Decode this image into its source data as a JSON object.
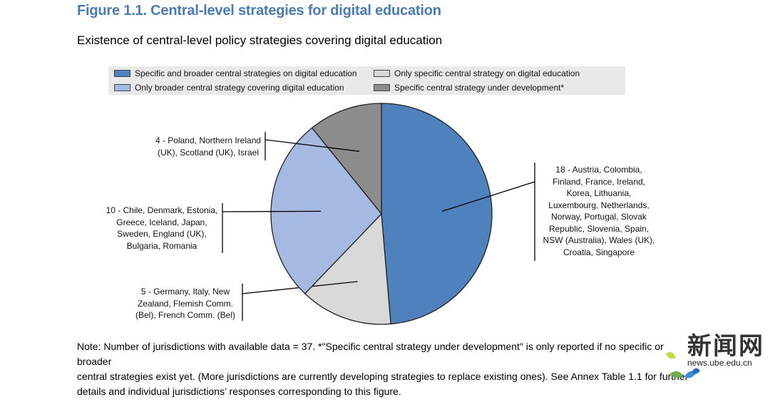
{
  "figure": {
    "title": "Figure 1.1. Central-level strategies for digital education",
    "subtitle": "Existence of central-level policy strategies covering digital education"
  },
  "legend": {
    "items": [
      {
        "label": "Specific and broader central strategies on digital education",
        "color": "#4f81bd"
      },
      {
        "label": "Only specific central strategy on digital education",
        "color": "#d9d9d9"
      },
      {
        "label": "Only broader central strategy covering digital education",
        "color": "#a6b9e3"
      },
      {
        "label": "Specific central strategy under development*",
        "color": "#8c8c8c"
      }
    ]
  },
  "chart_data": {
    "type": "pie",
    "title": "Existence of central-level policy strategies covering digital education",
    "total": 37,
    "slices": [
      {
        "name": "Specific and broader central strategies on digital education",
        "value": 18,
        "color": "#4f81bd",
        "label_lines": [
          "18 - Austria, Colombia,",
          "Finland, France, Ireland,",
          "Korea, Lithuania,",
          "Luxembourg, Netherlands,",
          "Norway, Portugal, Slovak",
          "Republic, Slovenia, Spain,",
          "NSW (Australia), Wales (UK),",
          "Croatia, Singapore"
        ]
      },
      {
        "name": "Only specific central strategy on digital education",
        "value": 5,
        "color": "#d9d9d9",
        "label_lines": [
          "5 - Germany, Italy, New",
          "Zealand, Flemish Comm.",
          "(Bel), French Comm. (Bel)"
        ]
      },
      {
        "name": "Only broader central strategy covering digital education",
        "value": 10,
        "color": "#a6b9e3",
        "label_lines": [
          "10 - Chile, Denmark, Estonia,",
          "Greece, Iceland, Japan,",
          "Sweden, England (UK),",
          "Bulgaria, Romania"
        ]
      },
      {
        "name": "Specific central strategy under development*",
        "value": 4,
        "color": "#8c8c8c",
        "label_lines": [
          "4 - Poland, Northern Ireland",
          "(UK), Scotland (UK), Israel"
        ]
      }
    ]
  },
  "note": {
    "lines": [
      "Note: Number of jurisdictions with available data = 37. *\"Specific central strategy under development\" is only reported if no specific or broader",
      "central strategies exist yet. (More jurisdictions are currently developing strategies to replace existing ones). See Annex Table 1.1 for further",
      "details and individual jurisdictions’ responses corresponding to this figure."
    ]
  },
  "watermark": {
    "text": "新闻网",
    "url": "news.ube.edu.cn"
  }
}
